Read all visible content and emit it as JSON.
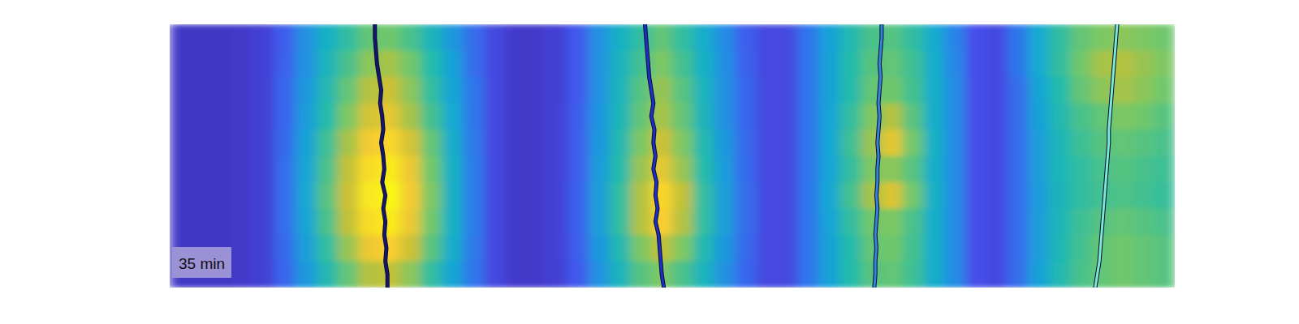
{
  "chart_data": {
    "type": "heatmap",
    "annotation": "35 min",
    "tick_labels": false,
    "xlim": [
      0,
      48
    ],
    "ylim": [
      0,
      10
    ],
    "color_range": [
      0,
      1
    ],
    "cells": [
      [
        0.05,
        0.05,
        0.05,
        0.06,
        0.08,
        0.16,
        0.3,
        0.42,
        0.52,
        0.6,
        0.62,
        0.56,
        0.45,
        0.32,
        0.2,
        0.1,
        0.06,
        0.06,
        0.08,
        0.15,
        0.3,
        0.42,
        0.52,
        0.6,
        0.52,
        0.4,
        0.28,
        0.16,
        0.1,
        0.1,
        0.22,
        0.35,
        0.48,
        0.56,
        0.58,
        0.52,
        0.38,
        0.26,
        0.12,
        0.1,
        0.22,
        0.38,
        0.52,
        0.6,
        0.64,
        0.66,
        0.64,
        0.62
      ],
      [
        0.05,
        0.05,
        0.05,
        0.06,
        0.08,
        0.17,
        0.3,
        0.45,
        0.56,
        0.66,
        0.7,
        0.62,
        0.5,
        0.35,
        0.2,
        0.1,
        0.06,
        0.06,
        0.08,
        0.15,
        0.3,
        0.44,
        0.55,
        0.64,
        0.55,
        0.42,
        0.29,
        0.17,
        0.1,
        0.1,
        0.22,
        0.35,
        0.5,
        0.58,
        0.6,
        0.54,
        0.4,
        0.27,
        0.12,
        0.1,
        0.22,
        0.38,
        0.52,
        0.62,
        0.7,
        0.72,
        0.68,
        0.64
      ],
      [
        0.05,
        0.05,
        0.05,
        0.06,
        0.08,
        0.18,
        0.32,
        0.48,
        0.6,
        0.72,
        0.76,
        0.66,
        0.52,
        0.36,
        0.22,
        0.1,
        0.06,
        0.06,
        0.08,
        0.15,
        0.3,
        0.45,
        0.58,
        0.68,
        0.58,
        0.44,
        0.3,
        0.18,
        0.1,
        0.1,
        0.22,
        0.35,
        0.5,
        0.6,
        0.62,
        0.55,
        0.4,
        0.28,
        0.12,
        0.1,
        0.2,
        0.36,
        0.5,
        0.6,
        0.66,
        0.7,
        0.66,
        0.62
      ],
      [
        0.05,
        0.05,
        0.05,
        0.06,
        0.08,
        0.18,
        0.33,
        0.5,
        0.64,
        0.78,
        0.82,
        0.7,
        0.55,
        0.38,
        0.22,
        0.1,
        0.06,
        0.06,
        0.08,
        0.16,
        0.31,
        0.46,
        0.6,
        0.7,
        0.6,
        0.45,
        0.3,
        0.18,
        0.1,
        0.1,
        0.22,
        0.36,
        0.52,
        0.64,
        0.72,
        0.58,
        0.4,
        0.28,
        0.12,
        0.1,
        0.2,
        0.35,
        0.48,
        0.56,
        0.6,
        0.64,
        0.62,
        0.58
      ],
      [
        0.05,
        0.05,
        0.05,
        0.06,
        0.08,
        0.19,
        0.35,
        0.54,
        0.7,
        0.86,
        0.9,
        0.78,
        0.6,
        0.4,
        0.23,
        0.1,
        0.06,
        0.06,
        0.08,
        0.16,
        0.32,
        0.48,
        0.64,
        0.76,
        0.64,
        0.48,
        0.32,
        0.19,
        0.1,
        0.1,
        0.22,
        0.36,
        0.54,
        0.68,
        0.82,
        0.62,
        0.42,
        0.28,
        0.12,
        0.1,
        0.2,
        0.34,
        0.46,
        0.54,
        0.58,
        0.6,
        0.58,
        0.56
      ],
      [
        0.05,
        0.05,
        0.05,
        0.06,
        0.08,
        0.2,
        0.36,
        0.56,
        0.74,
        0.92,
        0.96,
        0.84,
        0.62,
        0.42,
        0.24,
        0.1,
        0.06,
        0.06,
        0.08,
        0.16,
        0.33,
        0.5,
        0.68,
        0.82,
        0.68,
        0.5,
        0.33,
        0.19,
        0.1,
        0.1,
        0.22,
        0.36,
        0.52,
        0.64,
        0.66,
        0.58,
        0.4,
        0.28,
        0.12,
        0.1,
        0.2,
        0.34,
        0.46,
        0.52,
        0.56,
        0.58,
        0.56,
        0.54
      ],
      [
        0.05,
        0.05,
        0.05,
        0.06,
        0.08,
        0.2,
        0.37,
        0.58,
        0.76,
        0.95,
        1,
        0.86,
        0.64,
        0.42,
        0.24,
        0.1,
        0.06,
        0.06,
        0.08,
        0.17,
        0.34,
        0.52,
        0.72,
        0.9,
        0.74,
        0.52,
        0.34,
        0.2,
        0.1,
        0.1,
        0.22,
        0.37,
        0.55,
        0.7,
        0.8,
        0.62,
        0.42,
        0.28,
        0.12,
        0.1,
        0.2,
        0.33,
        0.45,
        0.52,
        0.55,
        0.57,
        0.55,
        0.53
      ],
      [
        0.05,
        0.05,
        0.05,
        0.06,
        0.08,
        0.2,
        0.36,
        0.56,
        0.74,
        0.92,
        0.96,
        0.84,
        0.62,
        0.42,
        0.24,
        0.1,
        0.06,
        0.06,
        0.08,
        0.17,
        0.34,
        0.52,
        0.72,
        0.88,
        0.72,
        0.52,
        0.34,
        0.2,
        0.1,
        0.1,
        0.22,
        0.36,
        0.52,
        0.62,
        0.64,
        0.56,
        0.4,
        0.28,
        0.12,
        0.1,
        0.2,
        0.34,
        0.46,
        0.54,
        0.58,
        0.6,
        0.58,
        0.56
      ],
      [
        0.05,
        0.05,
        0.05,
        0.06,
        0.08,
        0.19,
        0.34,
        0.52,
        0.68,
        0.84,
        0.88,
        0.76,
        0.58,
        0.4,
        0.23,
        0.1,
        0.06,
        0.06,
        0.08,
        0.16,
        0.32,
        0.48,
        0.64,
        0.74,
        0.64,
        0.48,
        0.32,
        0.19,
        0.1,
        0.1,
        0.22,
        0.35,
        0.5,
        0.6,
        0.62,
        0.55,
        0.4,
        0.28,
        0.12,
        0.1,
        0.2,
        0.34,
        0.47,
        0.55,
        0.6,
        0.62,
        0.6,
        0.58
      ],
      [
        0.05,
        0.05,
        0.05,
        0.06,
        0.08,
        0.18,
        0.32,
        0.48,
        0.6,
        0.72,
        0.74,
        0.66,
        0.52,
        0.36,
        0.22,
        0.1,
        0.06,
        0.06,
        0.08,
        0.15,
        0.3,
        0.45,
        0.58,
        0.64,
        0.56,
        0.44,
        0.3,
        0.18,
        0.1,
        0.1,
        0.22,
        0.35,
        0.5,
        0.58,
        0.6,
        0.54,
        0.4,
        0.28,
        0.12,
        0.1,
        0.2,
        0.35,
        0.48,
        0.56,
        0.6,
        0.62,
        0.6,
        0.58
      ]
    ],
    "series": [
      {
        "type": "line",
        "color": "#15166e",
        "x": [
          9.8,
          9.8,
          9.85,
          9.9,
          10.0,
          10.1,
          10.05,
          10.15,
          10.2,
          10.1,
          10.2,
          10.25,
          10.15,
          10.3,
          10.2,
          10.3,
          10.25,
          10.35,
          10.3,
          10.4,
          10.4
        ],
        "y": [
          0,
          0.5,
          1,
          1.5,
          2,
          2.5,
          3,
          3.5,
          4,
          4.5,
          5,
          5.5,
          6,
          6.5,
          7,
          7.5,
          8,
          8.5,
          9,
          9.5,
          10
        ]
      },
      {
        "type": "line",
        "color": "#1d2fc4",
        "x": [
          22.7,
          22.75,
          22.8,
          22.85,
          22.9,
          23.0,
          23.1,
          23.0,
          23.15,
          23.1,
          23.2,
          23.1,
          23.25,
          23.2,
          23.3,
          23.2,
          23.35,
          23.4,
          23.45,
          23.5,
          23.6
        ],
        "y": [
          0,
          0.5,
          1,
          1.5,
          2,
          2.5,
          3,
          3.5,
          4,
          4.5,
          5,
          5.5,
          6,
          6.5,
          7,
          7.5,
          8,
          8.5,
          9,
          9.5,
          10
        ]
      },
      {
        "type": "line",
        "color": "#2f86d8",
        "x": [
          34.0,
          34.0,
          33.95,
          33.9,
          33.95,
          33.9,
          33.85,
          33.9,
          33.85,
          33.8,
          33.85,
          33.8,
          33.8,
          33.75,
          33.8,
          33.75,
          33.7,
          33.75,
          33.7,
          33.7,
          33.65
        ],
        "y": [
          0,
          0.5,
          1,
          1.5,
          2,
          2.5,
          3,
          3.5,
          4,
          4.5,
          5,
          5.5,
          6,
          6.5,
          7,
          7.5,
          8,
          8.5,
          9,
          9.5,
          10
        ]
      },
      {
        "type": "line",
        "color": "#78ecd2",
        "x": [
          45.25,
          45.2,
          45.15,
          45.1,
          45.05,
          45.0,
          44.95,
          44.9,
          44.85,
          44.85,
          44.8,
          44.75,
          44.7,
          44.65,
          44.6,
          44.55,
          44.5,
          44.45,
          44.4,
          44.3,
          44.2
        ],
        "y": [
          0,
          0.5,
          1,
          1.5,
          2,
          2.5,
          3,
          3.5,
          4,
          4.5,
          5,
          5.5,
          6,
          6.5,
          7,
          7.5,
          8,
          8.5,
          9,
          9.5,
          10
        ]
      }
    ]
  }
}
